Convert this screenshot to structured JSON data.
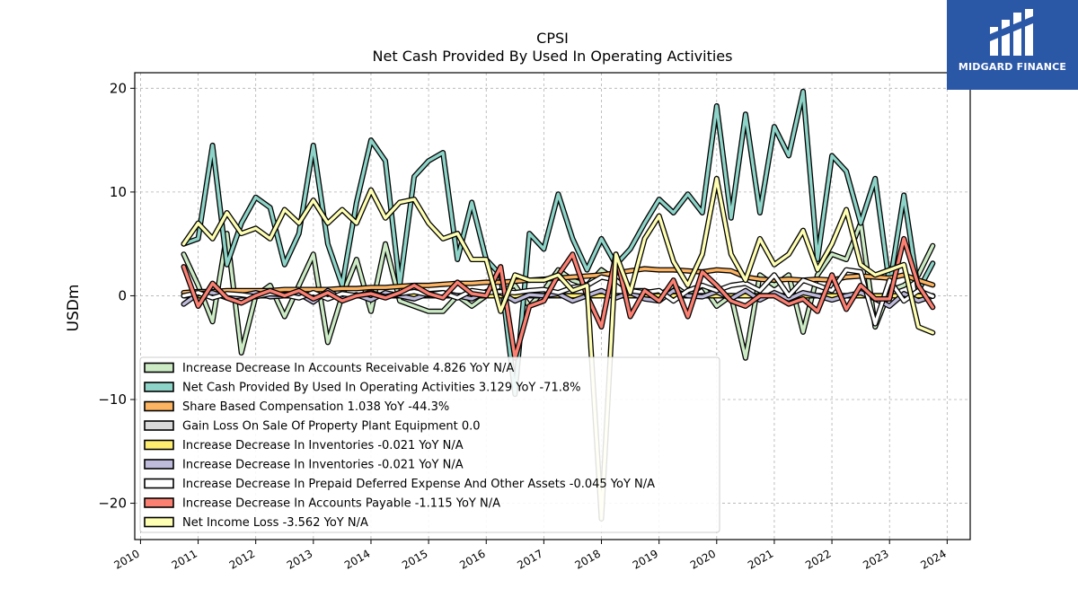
{
  "brand": {
    "logo_text": "MIDGARD FINANCE",
    "background": "#2b57a7"
  },
  "chart_data": {
    "type": "line",
    "title": "CPSI",
    "subtitle": "Net Cash Provided By Used In Operating Activities",
    "ylabel": "USDm",
    "xlabel": "",
    "ylim": [
      -23.5,
      21.5
    ],
    "xlim": [
      2009.9,
      2024.4
    ],
    "yticks": [
      -20,
      -10,
      0,
      10,
      20
    ],
    "xticks": [
      2010,
      2011,
      2012,
      2013,
      2014,
      2015,
      2016,
      2017,
      2018,
      2019,
      2020,
      2021,
      2022,
      2023,
      2024
    ],
    "grid": true,
    "legend_position": "lower-left",
    "x": [
      2010.75,
      2011.0,
      2011.25,
      2011.5,
      2011.75,
      2012.0,
      2012.25,
      2012.5,
      2012.75,
      2013.0,
      2013.25,
      2013.5,
      2013.75,
      2014.0,
      2014.25,
      2014.5,
      2014.75,
      2015.0,
      2015.25,
      2015.5,
      2015.75,
      2016.0,
      2016.25,
      2016.5,
      2016.75,
      2017.0,
      2017.25,
      2017.5,
      2017.75,
      2018.0,
      2018.25,
      2018.5,
      2018.75,
      2019.0,
      2019.25,
      2019.5,
      2019.75,
      2020.0,
      2020.25,
      2020.5,
      2020.75,
      2021.0,
      2021.25,
      2021.5,
      2021.75,
      2022.0,
      2022.25,
      2022.5,
      2022.75,
      2023.0,
      2023.25,
      2023.5,
      2023.75
    ],
    "series": [
      {
        "name": "Increase Decrease In Accounts Receivable",
        "legend": "Increase Decrease In Accounts Receivable  4.826 YoY N/A",
        "color": "#ccebc5",
        "values": [
          4.0,
          1.0,
          -2.5,
          6.0,
          -5.5,
          0.0,
          1.0,
          -2.0,
          1.0,
          4.0,
          -4.5,
          0.0,
          3.5,
          -1.5,
          5.0,
          -0.5,
          -1.0,
          -1.5,
          -1.5,
          0.0,
          -1.0,
          0.0,
          0.5,
          1.0,
          -1.0,
          0.5,
          2.5,
          1.5,
          1.0,
          2.5,
          1.5,
          0.5,
          0.5,
          0.0,
          1.0,
          0.0,
          1.0,
          -1.0,
          0.0,
          -6.0,
          2.0,
          1.0,
          2.0,
          -3.5,
          2.0,
          4.0,
          3.5,
          7.0,
          -3.0,
          0.5,
          1.0,
          2.0,
          4.826
        ]
      },
      {
        "name": "Net Cash Provided By Used In Operating Activities",
        "legend": "Net Cash Provided By Used In Operating Activities  3.129 YoY -71.8%",
        "color": "#8dd3c7",
        "values": [
          5.0,
          5.5,
          14.5,
          3.0,
          7.0,
          9.5,
          8.5,
          3.0,
          6.0,
          14.5,
          5.0,
          1.0,
          9.0,
          15.0,
          13.0,
          1.0,
          11.5,
          13.0,
          13.8,
          3.5,
          9.0,
          3.5,
          2.0,
          -9.5,
          6.0,
          4.5,
          9.8,
          5.5,
          2.5,
          5.5,
          3.0,
          4.5,
          7.0,
          9.3,
          8.0,
          9.8,
          8.0,
          18.3,
          7.5,
          17.5,
          8.0,
          16.3,
          13.5,
          19.7,
          3.5,
          13.5,
          12.0,
          7.0,
          11.3,
          1.0,
          9.7,
          0.5,
          3.129
        ]
      },
      {
        "name": "Share Based Compensation",
        "legend": "Share Based Compensation  1.038 YoY -44.3%",
        "color": "#fdb462",
        "values": [
          0.3,
          0.4,
          0.4,
          0.5,
          0.5,
          0.5,
          0.5,
          0.6,
          0.6,
          0.6,
          0.6,
          0.7,
          0.7,
          0.8,
          0.8,
          0.9,
          1.0,
          1.0,
          1.1,
          1.2,
          1.2,
          1.3,
          1.3,
          1.4,
          1.5,
          1.6,
          1.7,
          1.8,
          1.9,
          2.0,
          2.2,
          2.4,
          2.6,
          2.5,
          2.5,
          2.4,
          2.3,
          2.5,
          2.4,
          1.8,
          1.6,
          1.5,
          1.6,
          1.5,
          1.6,
          1.5,
          1.8,
          1.9,
          1.8,
          1.7,
          2.0,
          1.5,
          1.038
        ]
      },
      {
        "name": "Gain Loss On Sale Of Property Plant Equipment",
        "legend": "Gain Loss On Sale Of Property Plant Equipment  0.0",
        "color": "#d9d9d9",
        "values": [
          0.0,
          0.0,
          0.0,
          0.0,
          0.0,
          0.0,
          0.0,
          0.0,
          0.0,
          0.0,
          0.0,
          0.0,
          0.0,
          0.0,
          0.0,
          0.0,
          0.0,
          0.0,
          0.0,
          0.0,
          0.0,
          0.0,
          0.0,
          0.0,
          0.0,
          0.0,
          0.0,
          0.0,
          0.0,
          0.0,
          0.0,
          0.0,
          0.0,
          0.0,
          0.0,
          0.0,
          0.0,
          0.0,
          0.0,
          0.0,
          0.0,
          0.0,
          0.0,
          0.0,
          0.0,
          0.0,
          0.0,
          0.0,
          0.0,
          0.0,
          0.0,
          0.0,
          0.0
        ]
      },
      {
        "name": "Increase Decrease In Inventories",
        "legend": "Increase Decrease In Inventories  -0.021 YoY N/A",
        "color": "#ffed6f",
        "values": [
          0.0,
          0.0,
          0.0,
          0.0,
          0.0,
          0.0,
          0.0,
          0.0,
          0.0,
          0.0,
          0.0,
          0.0,
          0.0,
          0.0,
          0.0,
          0.0,
          0.0,
          0.0,
          0.0,
          0.0,
          0.0,
          0.0,
          0.0,
          0.0,
          0.0,
          0.0,
          0.0,
          0.0,
          0.0,
          0.0,
          0.0,
          0.0,
          0.0,
          0.0,
          0.0,
          0.0,
          0.0,
          0.0,
          0.0,
          0.0,
          0.0,
          0.0,
          0.0,
          0.0,
          0.0,
          0.0,
          0.0,
          0.0,
          0.0,
          0.0,
          0.0,
          0.0,
          -0.021
        ]
      },
      {
        "name": "Increase Decrease In Inventories",
        "legend": "Increase Decrease In Inventories  -0.021 YoY N/A",
        "color": "#bebada",
        "values": [
          -0.8,
          0.2,
          0.3,
          -0.2,
          0.0,
          0.3,
          -0.1,
          0.0,
          0.2,
          -0.6,
          0.5,
          -0.3,
          0.1,
          -0.4,
          0.3,
          0.0,
          -0.3,
          0.2,
          0.3,
          0.0,
          -0.3,
          0.4,
          0.3,
          -0.5,
          0.1,
          0.0,
          0.2,
          -0.5,
          0.0,
          0.5,
          -0.2,
          0.3,
          -0.3,
          -0.5,
          0.5,
          0.0,
          -0.1,
          0.4,
          -0.3,
          0.5,
          -0.4,
          0.3,
          -0.3,
          0.3,
          0.0,
          -0.4,
          0.0,
          0.3,
          -0.3,
          -1.0,
          0.2,
          -0.5,
          -0.021
        ]
      },
      {
        "name": "Increase Decrease In Prepaid Deferred Expense And Other Assets",
        "legend": "Increase Decrease In Prepaid Deferred Expense And Other Assets  -0.045 YoY N/A",
        "color": "#ffffff",
        "values": [
          0.0,
          0.3,
          -0.2,
          0.2,
          0.1,
          -0.1,
          0.2,
          0.1,
          -0.2,
          0.3,
          -0.3,
          0.2,
          0.0,
          0.3,
          -0.1,
          0.2,
          0.4,
          0.1,
          0.3,
          -0.2,
          0.5,
          0.3,
          0.4,
          0.3,
          0.5,
          0.6,
          0.3,
          0.8,
          1.0,
          1.8,
          1.5,
          0.5,
          0.3,
          0.5,
          -0.5,
          0.5,
          1.0,
          0.5,
          1.0,
          1.2,
          0.5,
          2.0,
          0.0,
          1.5,
          1.0,
          0.5,
          2.5,
          2.3,
          -2.7,
          1.5,
          -0.5,
          0.5,
          -0.045
        ]
      },
      {
        "name": "Increase Decrease In Accounts Payable",
        "legend": "Increase Decrease In Accounts Payable  -1.115 YoY N/A",
        "color": "#fb8072",
        "values": [
          2.8,
          -1.0,
          1.2,
          -0.2,
          -0.7,
          0.0,
          0.5,
          0.0,
          0.5,
          -0.3,
          0.3,
          -0.5,
          0.0,
          0.2,
          -0.2,
          0.3,
          1.0,
          0.2,
          -0.2,
          1.3,
          0.2,
          0.0,
          2.8,
          -6.0,
          -1.0,
          -0.5,
          2.0,
          4.0,
          0.0,
          -3.0,
          4.0,
          -2.0,
          0.5,
          -0.5,
          1.5,
          -2.0,
          2.3,
          1.0,
          -0.5,
          -1.0,
          0.0,
          0.0,
          -0.8,
          -0.3,
          -1.5,
          2.0,
          -1.3,
          1.0,
          -0.3,
          -0.3,
          5.5,
          1.0,
          -1.115
        ]
      },
      {
        "name": "Net Income Loss",
        "legend": "Net Income Loss  -3.562 YoY N/A",
        "color": "#ffffb3",
        "values": [
          5.0,
          7.0,
          5.5,
          8.0,
          6.0,
          6.5,
          5.5,
          8.3,
          7.0,
          9.2,
          7.0,
          8.3,
          7.0,
          10.2,
          7.5,
          9.0,
          9.3,
          7.0,
          5.5,
          6.0,
          3.5,
          3.5,
          -1.5,
          2.0,
          1.5,
          1.5,
          2.0,
          0.5,
          1.0,
          -21.5,
          4.0,
          0.3,
          5.5,
          7.7,
          3.3,
          1.0,
          4.0,
          11.3,
          4.0,
          1.5,
          5.5,
          3.0,
          4.0,
          6.3,
          2.5,
          5.0,
          8.3,
          3.0,
          2.0,
          2.5,
          3.0,
          -3.0,
          -3.562
        ]
      }
    ]
  }
}
